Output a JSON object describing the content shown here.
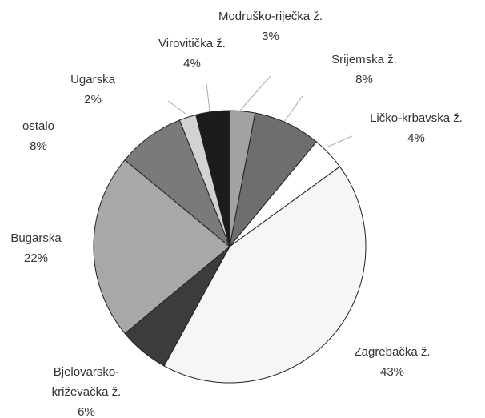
{
  "chart_data": {
    "type": "pie",
    "categories": [
      "Modruško-riječka ž.",
      "Srijemska ž.",
      "Ličko-krbavska ž.",
      "Zagrebačka ž.",
      "Bjelovarsko-križevačka ž.",
      "Bugarska",
      "ostalo",
      "Ugarska",
      "Virovitička ž."
    ],
    "values": [
      3,
      8,
      4,
      43,
      6,
      22,
      8,
      2,
      4
    ],
    "value_labels": [
      "3%",
      "8%",
      "4%",
      "43%",
      "6%",
      "22%",
      "8%",
      "2%",
      "4%"
    ],
    "colors": [
      "#a2a2a2",
      "#6e6e6e",
      "#ffffff",
      "#f6f6f6",
      "#3c3c3c",
      "#a8a8a8",
      "#7a7a7a",
      "#d2d2d2",
      "#1c1c1c"
    ]
  }
}
